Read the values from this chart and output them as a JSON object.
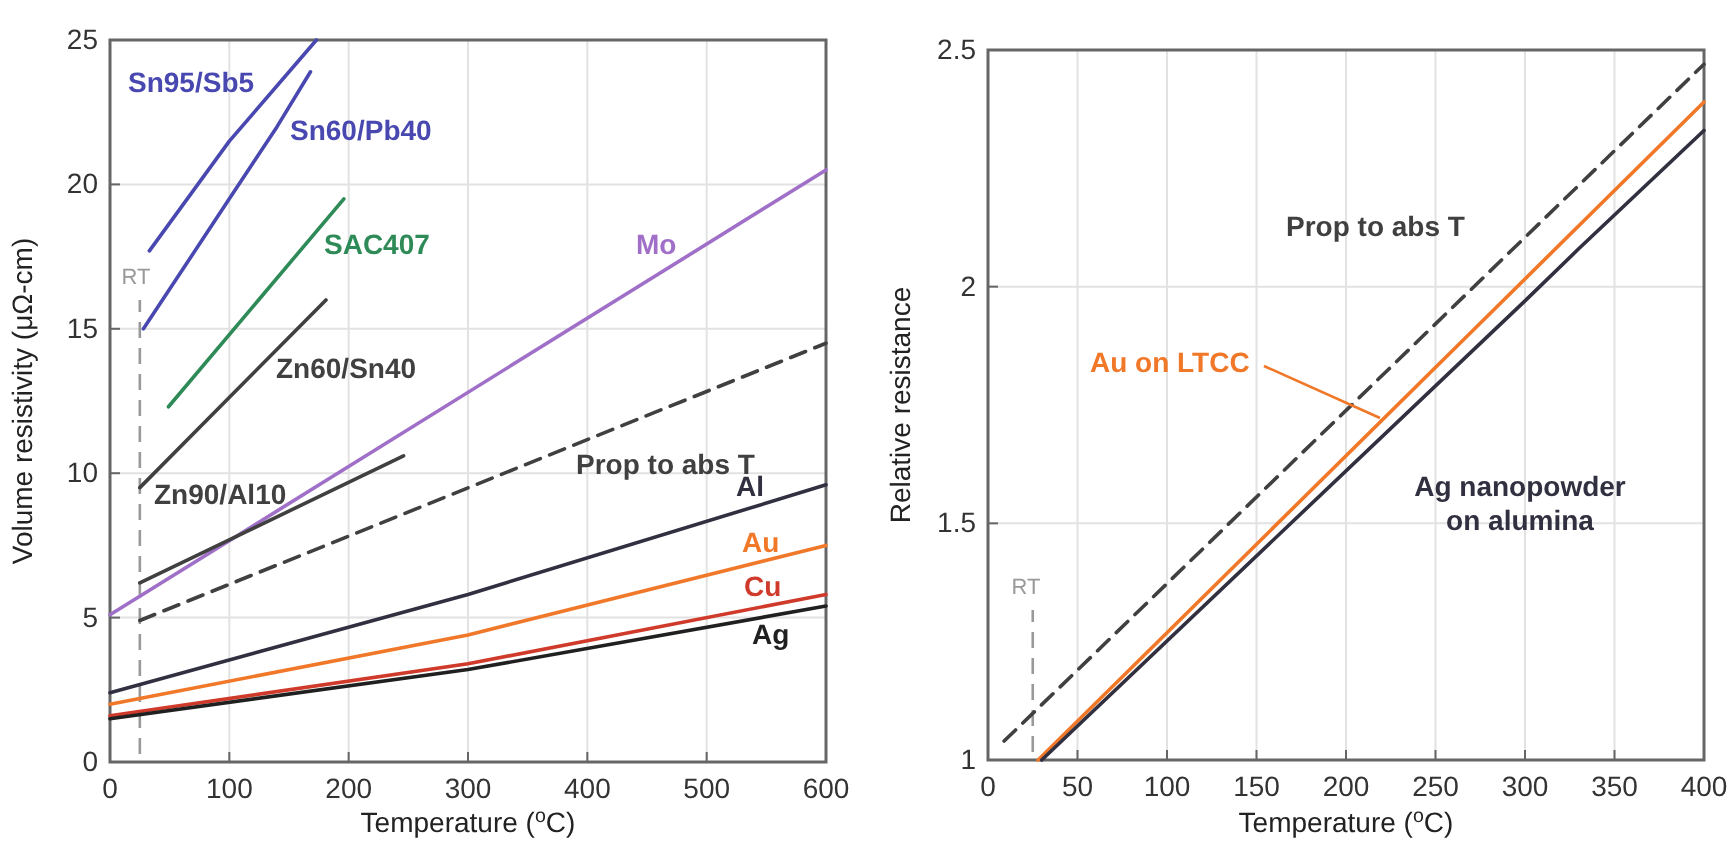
{
  "chart_data": [
    {
      "type": "line",
      "xlabel": "Temperature   ($^{o}$C)",
      "ylabel": "Volume resistivity   (μΩ-cm)",
      "xlim": [
        0,
        600
      ],
      "xticks": [
        0,
        100,
        200,
        300,
        400,
        500,
        600
      ],
      "ylim": [
        0,
        25
      ],
      "yticks": [
        0,
        5,
        10,
        15,
        20,
        25
      ],
      "grid": true,
      "ref_lines": [
        {
          "axis": "x",
          "value": 25,
          "label": "RT",
          "color": "#999999",
          "line_style": "dashed"
        }
      ],
      "series": [
        {
          "name": "Sn95/Sb5",
          "color": "#4848b0",
          "x": [
            33,
            100,
            173
          ],
          "values": [
            17.7,
            21.5,
            25
          ]
        },
        {
          "name": "Sn60/Pb40",
          "color": "#4848b0",
          "x": [
            28,
            100,
            140,
            168
          ],
          "values": [
            15,
            19.5,
            22,
            23.9
          ]
        },
        {
          "name": "SAC407",
          "color": "#2e8b57",
          "x": [
            49,
            196
          ],
          "values": [
            12.3,
            19.5
          ]
        },
        {
          "name": "Mo",
          "color": "#a070c8",
          "x": [
            0,
            600
          ],
          "values": [
            5.1,
            20.5
          ]
        },
        {
          "name": "Zn60/Sn40",
          "color": "#404040",
          "x": [
            25,
            181
          ],
          "values": [
            9.5,
            16.0
          ]
        },
        {
          "name": "Zn90/Al10",
          "color": "#404040",
          "x": [
            25,
            246
          ],
          "values": [
            6.2,
            10.6
          ]
        },
        {
          "name": "Prop to abs T",
          "color": "#404040",
          "line_style": "dashed",
          "x": [
            25,
            600
          ],
          "values": [
            4.9,
            14.5
          ]
        },
        {
          "name": "Al",
          "color": "#303040",
          "x": [
            0,
            300,
            600
          ],
          "values": [
            2.4,
            5.8,
            9.6
          ]
        },
        {
          "name": "Au",
          "color": "#f07828",
          "x": [
            0,
            300,
            600
          ],
          "values": [
            2.0,
            4.4,
            7.5
          ]
        },
        {
          "name": "Cu",
          "color": "#d03a2a",
          "x": [
            0,
            300,
            600
          ],
          "values": [
            1.6,
            3.4,
            5.8
          ]
        },
        {
          "name": "Ag",
          "color": "#202020",
          "x": [
            0,
            300,
            600
          ],
          "values": [
            1.5,
            3.2,
            5.4
          ]
        }
      ]
    },
    {
      "type": "line",
      "xlabel": "Temperature   ($^{o}$C)",
      "ylabel": "Relative resistance",
      "xlim": [
        0,
        400
      ],
      "xticks": [
        0,
        50,
        100,
        150,
        200,
        250,
        300,
        350,
        400
      ],
      "ylim": [
        1,
        2.5
      ],
      "yticks": [
        1,
        1.5,
        2,
        2.5
      ],
      "grid": true,
      "ref_lines": [
        {
          "axis": "x",
          "value": 25,
          "label": "RT",
          "color": "#999999",
          "line_style": "dashed"
        }
      ],
      "series": [
        {
          "name": "Prop to abs T",
          "color": "#404040",
          "line_style": "dashed",
          "x": [
            9,
            400
          ],
          "values": [
            1.04,
            2.47
          ]
        },
        {
          "name": "Au on LTCC",
          "color": "#f07828",
          "x": [
            28,
            400
          ],
          "values": [
            1.0,
            2.39
          ]
        },
        {
          "name": "Ag nanopowder on alumina",
          "color": "#303040",
          "x": [
            30,
            300,
            330,
            400
          ],
          "values": [
            1.0,
            1.97,
            2.08,
            2.33
          ]
        }
      ]
    }
  ]
}
